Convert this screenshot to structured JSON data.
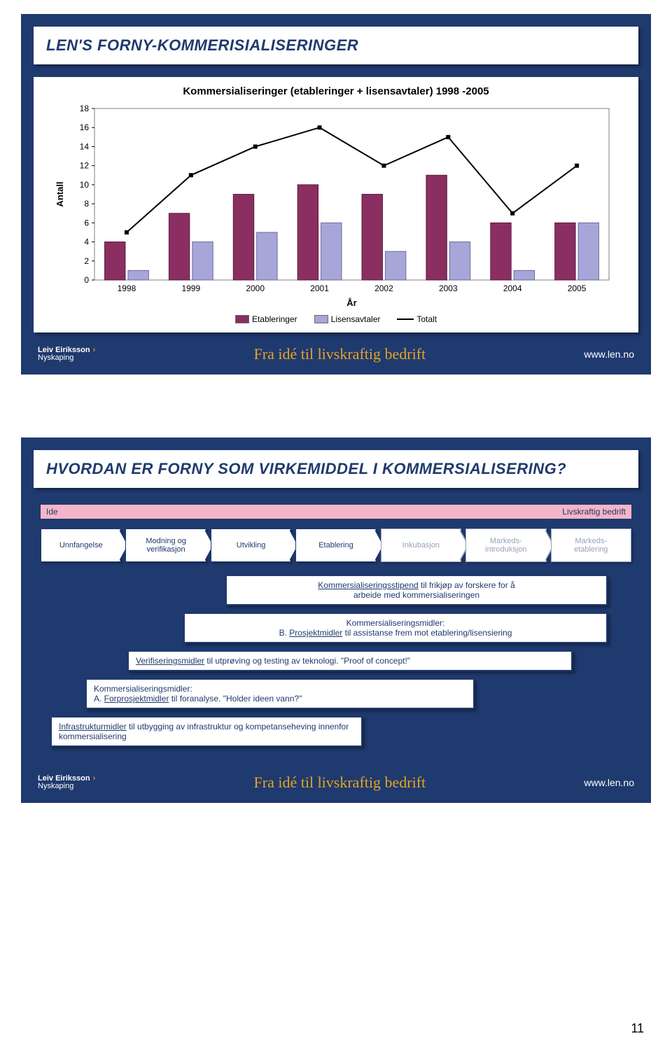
{
  "page_number": "11",
  "footer": {
    "brand_line1": "Leiv Eiriksson",
    "brand_line2": "Nyskaping",
    "center": "Fra idé til livskraftig bedrift",
    "right": "www.len.no",
    "center_color": "#e6a323",
    "bg": "#1f3a6e"
  },
  "slide1": {
    "title": "LEN'S FORNY-KOMMERISIALISERINGER",
    "chart": {
      "type": "bar+line",
      "title": "Kommersialiseringer (etableringer + lisensavtaler) 1998 -2005",
      "ylabel": "Antall",
      "xlabel": "År",
      "categories": [
        "1998",
        "1999",
        "2000",
        "2001",
        "2002",
        "2003",
        "2004",
        "2005"
      ],
      "series": {
        "etableringer": {
          "label": "Etableringer",
          "color": "#8b2e62",
          "values": [
            4,
            7,
            9,
            10,
            9,
            11,
            6,
            6
          ]
        },
        "lisensavtaler": {
          "label": "Lisensavtaler",
          "color": "#a7a6d8",
          "values": [
            1,
            4,
            5,
            6,
            3,
            4,
            1,
            6
          ]
        },
        "totalt": {
          "label": "Totalt",
          "color": "#000000",
          "values": [
            5,
            11,
            14,
            16,
            12,
            15,
            7,
            12
          ]
        }
      },
      "ylim": [
        0,
        18
      ],
      "ytick_step": 2,
      "background": "#ffffff",
      "grid_color": "#c0c0c0",
      "bar_width": 0.32,
      "label_fontsize": 12
    }
  },
  "slide2": {
    "title": "HVORDAN ER FORNY SOM VIRKEMIDDEL I KOMMERSIALISERING?",
    "flow_left": "Ide",
    "flow_right": "Livskraftig bedrift",
    "stages": [
      {
        "label": "Unnfangelse",
        "faded": false
      },
      {
        "label": "Modning og verifikasjon",
        "faded": false
      },
      {
        "label": "Utvikling",
        "faded": false
      },
      {
        "label": "Etablering",
        "faded": false
      },
      {
        "label": "Inkubasjon",
        "faded": true
      },
      {
        "label": "Markeds-introduksjon",
        "faded": true
      },
      {
        "label": "Markeds-etablering",
        "faded": true
      }
    ],
    "boxes": [
      {
        "cls": "ib5",
        "html": "<u>Kommersialiseringsstipend</u> til frikjøp av forskere for å<br>arbeide med kommersialiseringen"
      },
      {
        "cls": "ib4",
        "html": "Kommersialiseringsmidler:<br>B. <u>Prosjektmidler</u> til assistanse frem mot etablering/lisensiering"
      },
      {
        "cls": "ib3",
        "html": "<u>Verifiseringsmidler</u> til utprøving og testing av teknologi. \"Proof of concept!\""
      },
      {
        "cls": "ib2",
        "html": "Kommersialiseringsmidler:<br>A. <u>Forprosjektmidler</u> til foranalyse. \"Holder ideen vann?\""
      },
      {
        "cls": "ib1",
        "html": "<u>Infrastrukturmidler</u> til utbygging av infrastruktur og kompetanseheving innenfor kommersialisering"
      }
    ],
    "box_border": "#1f3a6e",
    "flow_bar_color": "#f5b5c8"
  }
}
